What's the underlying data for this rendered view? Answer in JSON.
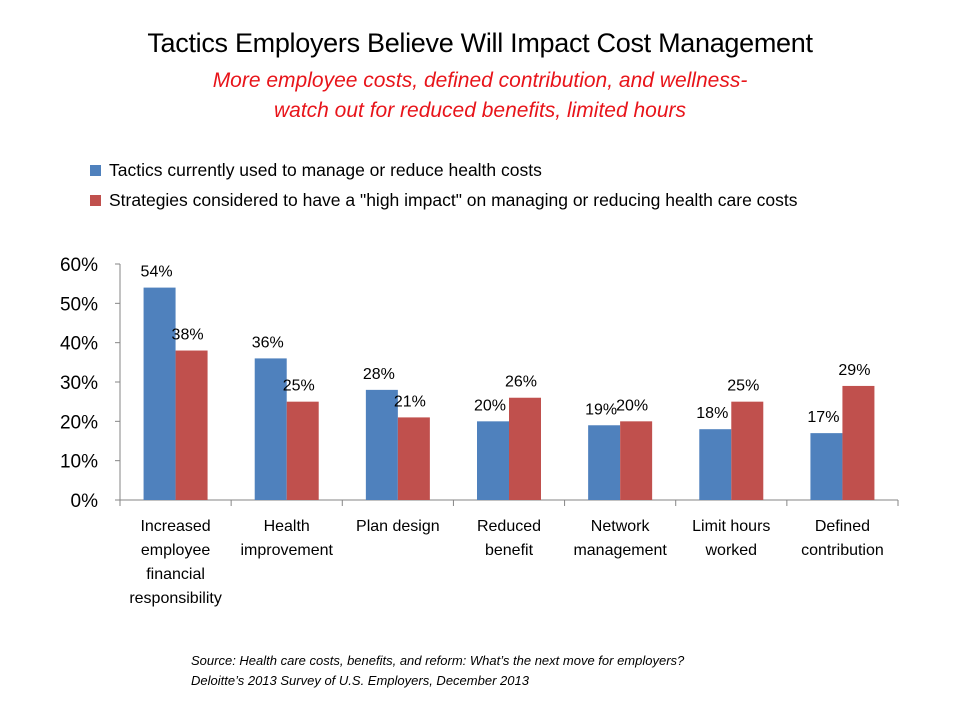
{
  "title": "Tactics Employers Believe Will Impact Cost Management",
  "subtitle_lines": [
    "More employee costs, defined contribution, and wellness-",
    "watch out for reduced benefits, limited hours"
  ],
  "colors": {
    "series_current": "#4f81bd",
    "series_high_impact": "#c0504d",
    "subtitle": "#e8141a"
  },
  "source_lines": [
    "Source: Health care costs, benefits, and reform: What’s the next move for employers?",
    "Deloitte’s 2013 Survey of U.S. Employers, December 2013"
  ],
  "chart_data": {
    "type": "bar",
    "title": "Tactics Employers Believe Will Impact Cost Management",
    "xlabel": "",
    "ylabel": "",
    "ylim": [
      0,
      60
    ],
    "yticks": [
      0,
      10,
      20,
      30,
      40,
      50,
      60
    ],
    "ytick_labels": [
      "0%",
      "10%",
      "20%",
      "30%",
      "40%",
      "50%",
      "60%"
    ],
    "grid": false,
    "legend_position": "top-left",
    "categories": [
      [
        "Increased",
        "employee",
        "financial",
        "responsibility"
      ],
      [
        "Health",
        "improvement"
      ],
      [
        "Plan design"
      ],
      [
        "Reduced",
        "benefit"
      ],
      [
        "Network",
        "management"
      ],
      [
        "Limit hours",
        "worked"
      ],
      [
        "Defined",
        "contribution"
      ]
    ],
    "series": [
      {
        "name": "Tactics currently used to manage or reduce health costs",
        "color": "#4f81bd",
        "values": [
          54,
          36,
          28,
          20,
          19,
          18,
          17
        ],
        "labels": [
          "54%",
          "36%",
          "28%",
          "20%",
          "19%",
          "18%",
          "17%"
        ]
      },
      {
        "name": "Strategies considered to have a \"high impact\" on managing or reducing health care costs",
        "color": "#c0504d",
        "values": [
          38,
          25,
          21,
          26,
          20,
          25,
          29
        ],
        "labels": [
          "38%",
          "25%",
          "21%",
          "26%",
          "20%",
          "25%",
          "29%"
        ]
      }
    ]
  }
}
